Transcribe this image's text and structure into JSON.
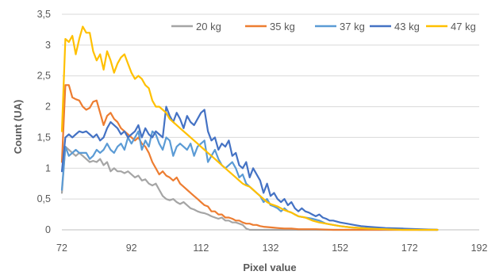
{
  "chart_data": {
    "type": "line",
    "xlabel": "Pixel value",
    "ylabel": "Count (UA)",
    "xlim": [
      72,
      192
    ],
    "ylim": [
      0,
      3.5
    ],
    "x_ticks": [
      72,
      92,
      112,
      132,
      152,
      172,
      192
    ],
    "y_ticks": [
      0,
      0.5,
      1,
      1.5,
      2,
      2.5,
      3,
      3.5
    ],
    "x_tick_labels": [
      "72",
      "92",
      "112",
      "132",
      "152",
      "172",
      "192"
    ],
    "y_tick_labels": [
      "0",
      "0,5",
      "1",
      "1,5",
      "2",
      "2,5",
      "3",
      "3,5"
    ],
    "grid": "horizontal",
    "legend_position": "top-right",
    "series": [
      {
        "name": "20 kg",
        "color": "#a5a5a5",
        "x": [
          72,
          73,
          74,
          75,
          76,
          77,
          78,
          79,
          80,
          81,
          82,
          83,
          84,
          85,
          86,
          87,
          88,
          89,
          90,
          91,
          92,
          93,
          94,
          95,
          96,
          97,
          98,
          99,
          100,
          101,
          102,
          103,
          104,
          105,
          106,
          107,
          108,
          109,
          110,
          111,
          112,
          113,
          114,
          115,
          116,
          117,
          118,
          119,
          120,
          121,
          122,
          123,
          124,
          125,
          126,
          128,
          130,
          135,
          140,
          150,
          160,
          170,
          180
        ],
        "values": [
          0.6,
          1.35,
          1.3,
          1.25,
          1.2,
          1.25,
          1.2,
          1.15,
          1.1,
          1.12,
          1.1,
          1.15,
          1.05,
          1.1,
          0.95,
          1.0,
          0.95,
          0.95,
          0.92,
          0.95,
          0.9,
          0.85,
          0.88,
          0.8,
          0.82,
          0.75,
          0.72,
          0.75,
          0.65,
          0.55,
          0.5,
          0.48,
          0.5,
          0.45,
          0.42,
          0.45,
          0.4,
          0.35,
          0.33,
          0.3,
          0.28,
          0.27,
          0.25,
          0.22,
          0.2,
          0.18,
          0.2,
          0.15,
          0.15,
          0.12,
          0.12,
          0.1,
          0.08,
          0.02,
          0.0,
          0.0,
          0.0,
          0.0,
          0.0,
          0.0,
          0.0,
          0.0,
          0.0
        ]
      },
      {
        "name": "35 kg",
        "color": "#ed7d31",
        "x": [
          72,
          73,
          74,
          75,
          76,
          77,
          78,
          79,
          80,
          81,
          82,
          83,
          84,
          85,
          86,
          87,
          88,
          89,
          90,
          91,
          92,
          93,
          94,
          95,
          96,
          97,
          98,
          99,
          100,
          101,
          102,
          103,
          104,
          105,
          106,
          107,
          108,
          109,
          110,
          111,
          112,
          113,
          114,
          115,
          116,
          117,
          118,
          119,
          120,
          121,
          122,
          123,
          124,
          125,
          126,
          127,
          128,
          129,
          130,
          132,
          134,
          136,
          138,
          140,
          145,
          150,
          155,
          160,
          170,
          180
        ],
        "values": [
          1.1,
          2.35,
          2.35,
          2.15,
          2.12,
          2.1,
          2.0,
          1.95,
          1.98,
          2.08,
          2.1,
          1.9,
          1.7,
          1.85,
          1.9,
          1.8,
          1.75,
          1.65,
          1.6,
          1.55,
          1.5,
          1.45,
          1.5,
          1.4,
          1.35,
          1.25,
          1.1,
          1.0,
          0.9,
          0.95,
          0.88,
          0.85,
          0.8,
          0.85,
          0.75,
          0.7,
          0.65,
          0.6,
          0.55,
          0.5,
          0.45,
          0.4,
          0.38,
          0.3,
          0.3,
          0.25,
          0.25,
          0.2,
          0.2,
          0.18,
          0.15,
          0.15,
          0.12,
          0.1,
          0.1,
          0.08,
          0.08,
          0.06,
          0.05,
          0.04,
          0.03,
          0.02,
          0.02,
          0.01,
          0.01,
          0.0,
          0.0,
          0.0,
          0.0,
          0.0
        ]
      },
      {
        "name": "37 kg",
        "color": "#5b9bd5",
        "x": [
          72,
          73,
          74,
          75,
          76,
          77,
          78,
          79,
          80,
          81,
          82,
          83,
          84,
          85,
          86,
          87,
          88,
          89,
          90,
          91,
          92,
          93,
          94,
          95,
          96,
          97,
          98,
          99,
          100,
          101,
          102,
          103,
          104,
          105,
          106,
          107,
          108,
          109,
          110,
          111,
          112,
          113,
          114,
          115,
          116,
          117,
          118,
          119,
          120,
          121,
          122,
          123,
          124,
          125,
          126,
          127,
          128,
          129,
          130,
          131,
          132,
          133,
          134,
          135,
          136,
          137,
          138,
          139,
          140,
          142,
          144,
          146,
          148,
          150,
          152,
          155,
          160,
          165,
          170,
          175,
          180
        ],
        "values": [
          0.65,
          1.35,
          1.2,
          1.25,
          1.3,
          1.25,
          1.25,
          1.25,
          1.15,
          1.2,
          1.3,
          1.25,
          1.3,
          1.4,
          1.3,
          1.25,
          1.35,
          1.4,
          1.3,
          1.5,
          1.4,
          1.5,
          1.6,
          1.3,
          1.45,
          1.35,
          1.6,
          1.55,
          1.4,
          1.3,
          1.5,
          1.45,
          1.2,
          1.35,
          1.4,
          1.35,
          1.3,
          1.4,
          1.2,
          1.35,
          1.4,
          1.45,
          1.1,
          1.2,
          1.3,
          1.15,
          1.05,
          1.0,
          1.05,
          1.1,
          1.0,
          0.85,
          0.9,
          0.75,
          0.7,
          0.65,
          0.6,
          0.55,
          0.45,
          0.5,
          0.4,
          0.38,
          0.35,
          0.3,
          0.35,
          0.3,
          0.28,
          0.25,
          0.22,
          0.2,
          0.18,
          0.15,
          0.1,
          0.08,
          0.06,
          0.04,
          0.02,
          0.01,
          0.01,
          0.0,
          0.0
        ]
      },
      {
        "name": "43 kg",
        "color": "#4472c4",
        "x": [
          72,
          73,
          74,
          75,
          76,
          77,
          78,
          79,
          80,
          81,
          82,
          83,
          84,
          85,
          86,
          87,
          88,
          89,
          90,
          91,
          92,
          93,
          94,
          95,
          96,
          97,
          98,
          99,
          100,
          101,
          102,
          103,
          104,
          105,
          106,
          107,
          108,
          109,
          110,
          111,
          112,
          113,
          114,
          115,
          116,
          117,
          118,
          119,
          120,
          121,
          122,
          123,
          124,
          125,
          126,
          127,
          128,
          129,
          130,
          131,
          132,
          133,
          134,
          135,
          136,
          137,
          138,
          139,
          140,
          141,
          142,
          143,
          144,
          145,
          146,
          147,
          148,
          149,
          150,
          152,
          154,
          156,
          158,
          160,
          165,
          170,
          175,
          180
        ],
        "values": [
          0.95,
          1.5,
          1.55,
          1.5,
          1.55,
          1.6,
          1.58,
          1.6,
          1.55,
          1.5,
          1.55,
          1.45,
          1.5,
          1.65,
          1.75,
          1.7,
          1.65,
          1.55,
          1.6,
          1.5,
          1.55,
          1.6,
          1.7,
          1.5,
          1.65,
          1.55,
          1.5,
          1.6,
          1.55,
          1.5,
          2.0,
          1.85,
          1.75,
          1.9,
          1.8,
          1.65,
          1.85,
          1.75,
          1.7,
          1.8,
          1.9,
          1.95,
          1.6,
          1.45,
          1.5,
          1.3,
          1.4,
          1.35,
          1.45,
          1.2,
          1.25,
          1.05,
          1.0,
          1.1,
          0.85,
          1.0,
          0.9,
          0.8,
          0.6,
          0.75,
          0.55,
          0.6,
          0.5,
          0.45,
          0.5,
          0.4,
          0.45,
          0.35,
          0.3,
          0.35,
          0.3,
          0.28,
          0.25,
          0.22,
          0.25,
          0.2,
          0.18,
          0.15,
          0.15,
          0.12,
          0.1,
          0.08,
          0.06,
          0.05,
          0.03,
          0.02,
          0.01,
          0.0
        ]
      },
      {
        "name": "47 kg",
        "color": "#ffc000",
        "x": [
          72,
          73,
          74,
          75,
          76,
          77,
          78,
          79,
          80,
          81,
          82,
          83,
          84,
          85,
          86,
          87,
          88,
          89,
          90,
          91,
          92,
          93,
          94,
          95,
          96,
          97,
          98,
          99,
          100,
          101,
          102,
          103,
          104,
          105,
          106,
          107,
          108,
          109,
          110,
          111,
          112,
          113,
          114,
          115,
          116,
          117,
          118,
          119,
          120,
          121,
          122,
          123,
          124,
          125,
          126,
          127,
          128,
          129,
          130,
          131,
          132,
          133,
          134,
          135,
          136,
          137,
          138,
          139,
          140,
          142,
          144,
          146,
          148,
          150,
          152,
          155,
          160,
          165,
          170,
          175,
          180
        ],
        "values": [
          1.6,
          3.1,
          3.05,
          3.15,
          2.85,
          3.1,
          3.3,
          3.2,
          3.2,
          2.9,
          2.75,
          2.85,
          2.6,
          2.9,
          2.75,
          2.55,
          2.7,
          2.8,
          2.85,
          2.7,
          2.55,
          2.45,
          2.5,
          2.45,
          2.35,
          2.3,
          2.1,
          2.0,
          2.0,
          1.95,
          1.9,
          1.8,
          1.75,
          1.7,
          1.65,
          1.6,
          1.55,
          1.5,
          1.45,
          1.4,
          1.35,
          1.3,
          1.25,
          1.2,
          1.15,
          1.1,
          1.05,
          1.0,
          0.95,
          0.9,
          0.85,
          0.8,
          0.75,
          0.72,
          0.7,
          0.65,
          0.6,
          0.55,
          0.5,
          0.45,
          0.42,
          0.4,
          0.38,
          0.35,
          0.32,
          0.3,
          0.28,
          0.25,
          0.22,
          0.2,
          0.15,
          0.12,
          0.1,
          0.08,
          0.06,
          0.04,
          0.02,
          0.01,
          0.0,
          0.0,
          0.0
        ]
      }
    ]
  }
}
